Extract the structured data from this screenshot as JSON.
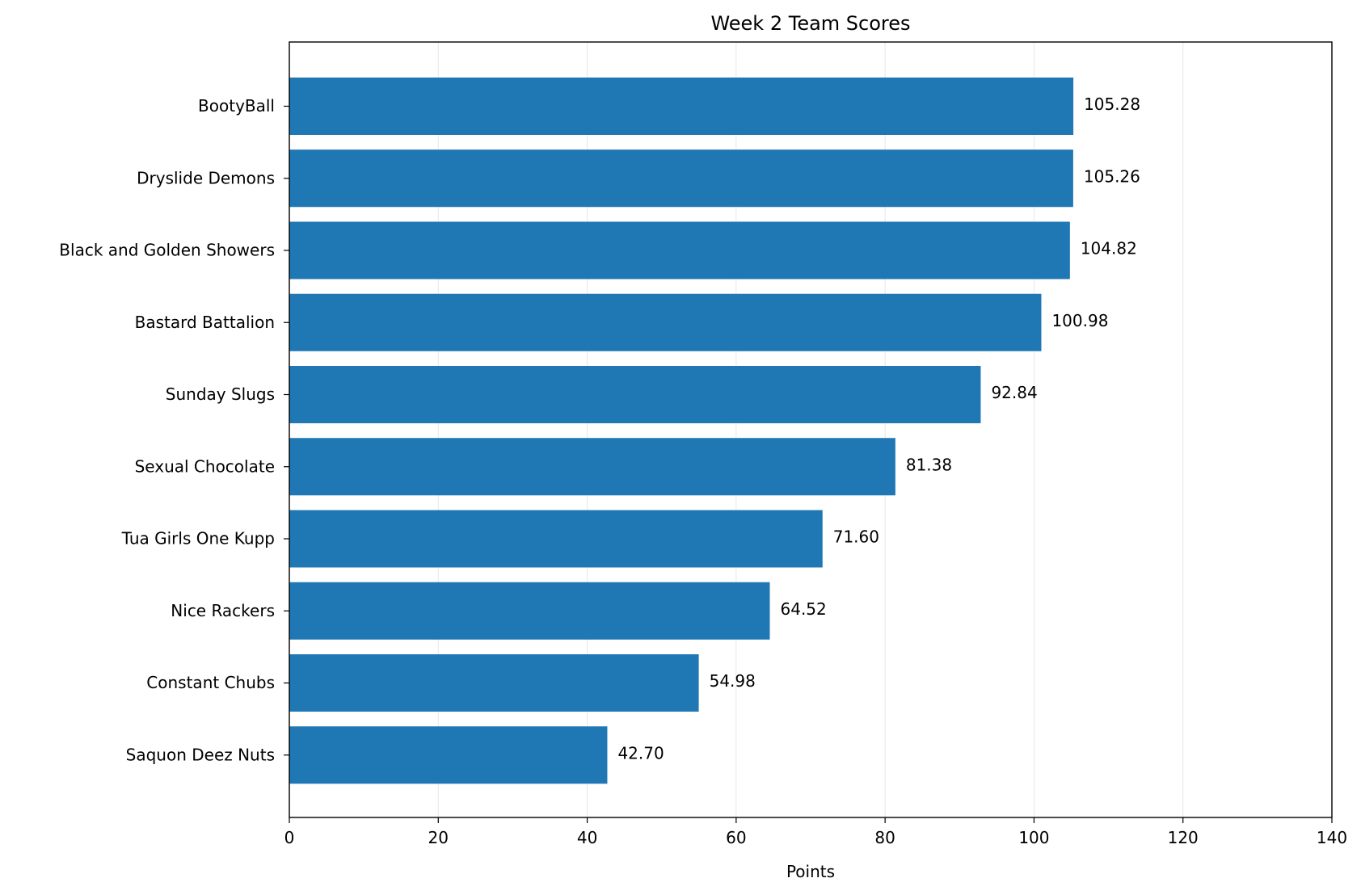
{
  "chart_data": {
    "type": "bar",
    "orientation": "horizontal",
    "title": "Week 2 Team Scores",
    "xlabel": "Points",
    "ylabel": "",
    "xlim": [
      0,
      140
    ],
    "xticks": [
      0,
      20,
      40,
      60,
      80,
      100,
      120,
      140
    ],
    "grid": "vertical",
    "categories": [
      "BootyBall",
      "Dryslide Demons",
      "Black and Golden Showers",
      "Bastard Battalion",
      "Sunday Slugs",
      "Sexual Chocolate",
      "Tua Girls One Kupp",
      "Nice Rackers",
      "Constant Chubs",
      "Saquon Deez Nuts"
    ],
    "values": [
      105.28,
      105.26,
      104.82,
      100.98,
      92.84,
      81.38,
      71.6,
      64.52,
      54.98,
      42.7
    ],
    "value_labels": [
      "105.28",
      "105.26",
      "104.82",
      "100.98",
      "92.84",
      "81.38",
      "71.60",
      "64.52",
      "54.98",
      "42.70"
    ],
    "bar_color": "#1f77b4",
    "grid_color": "#e6e6e6"
  }
}
